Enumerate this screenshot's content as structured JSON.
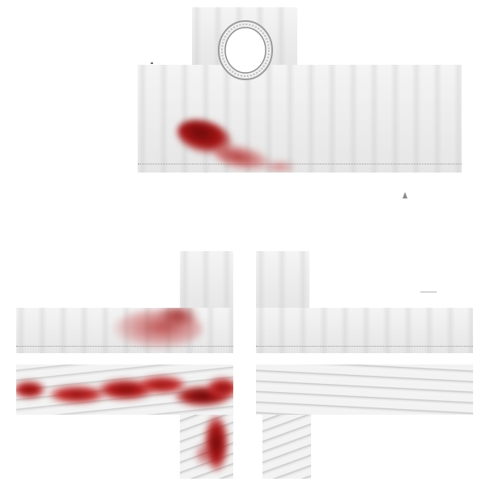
{
  "texture": {
    "kind": "shirt-template",
    "colors": {
      "background": "#ffffff",
      "fabric": "#eeeeee",
      "stitching": "#9a9a9a",
      "bandage_shadow": "#cfcfcf",
      "blood": "#b01818",
      "blood_dark": "#6b0a0a"
    },
    "regions": [
      {
        "name": "torso-top",
        "has_collar": true,
        "has_blood": true
      },
      {
        "name": "left-arm",
        "has_blood": true,
        "has_bandage": true
      },
      {
        "name": "right-arm",
        "has_blood": false,
        "has_bandage": true
      }
    ]
  }
}
